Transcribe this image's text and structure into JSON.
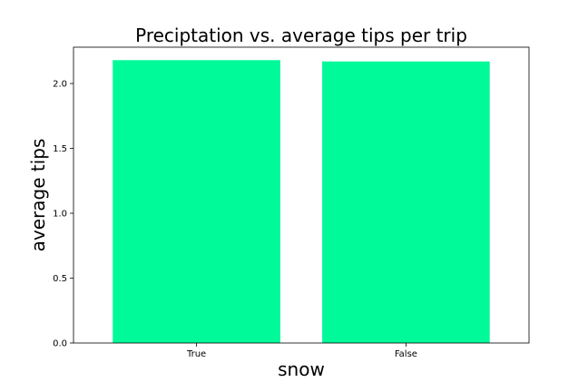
{
  "chart_data": {
    "type": "bar",
    "title": "Preciptation vs. average tips per trip",
    "xlabel": "snow",
    "ylabel": "average tips",
    "categories": [
      "True",
      "False"
    ],
    "values": [
      2.18,
      2.17
    ],
    "ylim": [
      0,
      2.28
    ],
    "yticks": [
      "0.0",
      "0.5",
      "1.0",
      "1.5",
      "2.0"
    ],
    "bar_color": "#00fa9a",
    "grid": false,
    "legend": "none"
  }
}
